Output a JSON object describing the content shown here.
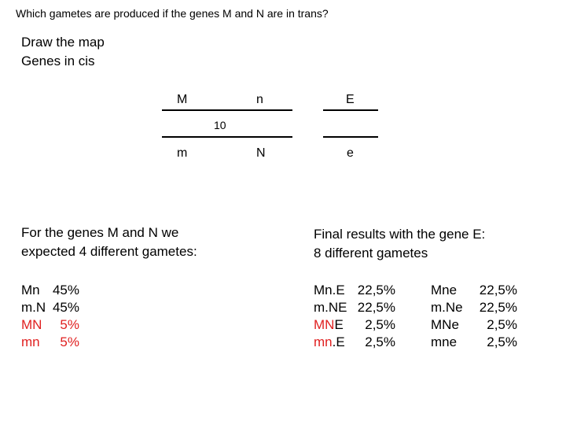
{
  "title": "Which gametes are produced if the genes M and N are in trans?",
  "heading": {
    "line1": "Draw the map",
    "line2": "Genes in cis"
  },
  "map": {
    "top": {
      "gene1": "M",
      "gene2": "n",
      "gene3": "E"
    },
    "distance": "10",
    "bottom": {
      "gene1": "m",
      "gene2": "N",
      "gene3": "e"
    }
  },
  "left_panel": {
    "line1": "For the genes M and N we",
    "line2": "expected 4 different  gametes:",
    "gametes": [
      {
        "name": "Mn",
        "pct": "45%",
        "recombinant": false
      },
      {
        "name": "m.N",
        "pct": "45%",
        "recombinant": false
      },
      {
        "name": "MN",
        "pct": "5%",
        "recombinant": true
      },
      {
        "name": "mn",
        "pct": "5%",
        "recombinant": true
      }
    ]
  },
  "right_panel": {
    "line1": "Final results with the gene E:",
    "line2": "8 different gametes",
    "col1": [
      {
        "red": "",
        "black": "Mn.E",
        "pct": "22,5%"
      },
      {
        "red": "",
        "black": "m.NE",
        "pct": "22,5%"
      },
      {
        "red": "MN",
        "black": "E",
        "pct": "2,5%"
      },
      {
        "red": "mn",
        "black": ".E",
        "pct": "2,5%"
      }
    ],
    "col2": [
      {
        "name": "Mne",
        "pct": "22,5%"
      },
      {
        "name": "m.Ne",
        "pct": "22,5%"
      },
      {
        "name": "MNe",
        "pct": "2,5%"
      },
      {
        "name": "mne",
        "pct": "2,5%"
      }
    ]
  },
  "colors": {
    "recombinant": "#e02020",
    "text": "#000000"
  }
}
